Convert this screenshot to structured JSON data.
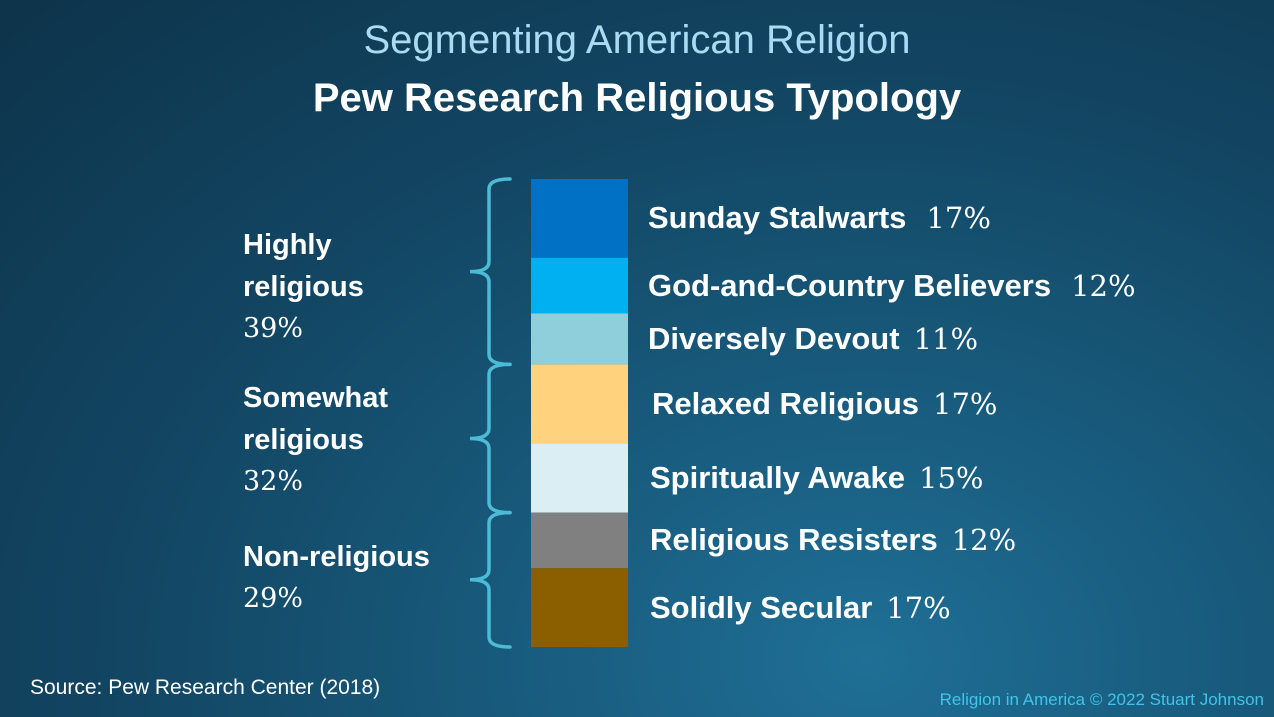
{
  "header": {
    "title": "Segmenting American Religion",
    "subtitle": "Pew Research Religious Typology"
  },
  "groups": [
    {
      "line1": "Highly",
      "line2": "religious",
      "pct": "39%"
    },
    {
      "line1": "Somewhat",
      "line2": "religious",
      "pct": "32%"
    },
    {
      "line1": "Non-religious",
      "line2": "",
      "pct": "29%"
    }
  ],
  "chart_data": {
    "type": "bar",
    "orientation": "stacked-vertical",
    "title": "Pew Research Religious Typology",
    "unit": "%",
    "categories": [
      "Sunday Stalwarts",
      "God-and-Country Believers",
      "Diversely Devout",
      "Relaxed Religious",
      "Spiritually Awake",
      "Religious Resisters",
      "Solidly Secular"
    ],
    "values": [
      17,
      12,
      11,
      17,
      15,
      12,
      17
    ],
    "labels": [
      "17%",
      "12%",
      "11%",
      "17%",
      "15%",
      "12%",
      "17%"
    ],
    "colors": [
      "#0071c5",
      "#00b0f0",
      "#8ecfdb",
      "#ffd27e",
      "#daeef3",
      "#808080",
      "#8b5e00"
    ],
    "groups": [
      {
        "name": "Highly religious",
        "value": 39,
        "members": [
          0,
          1,
          2
        ]
      },
      {
        "name": "Somewhat religious",
        "value": 32,
        "members": [
          3,
          4
        ]
      },
      {
        "name": "Non-religious",
        "value": 29,
        "members": [
          5,
          6
        ]
      }
    ],
    "brace_color": "#4bbbd6"
  },
  "footer": {
    "source": "Source: Pew Research Center  (2018)",
    "credit": "Religion in America © 2022 Stuart Johnson"
  }
}
